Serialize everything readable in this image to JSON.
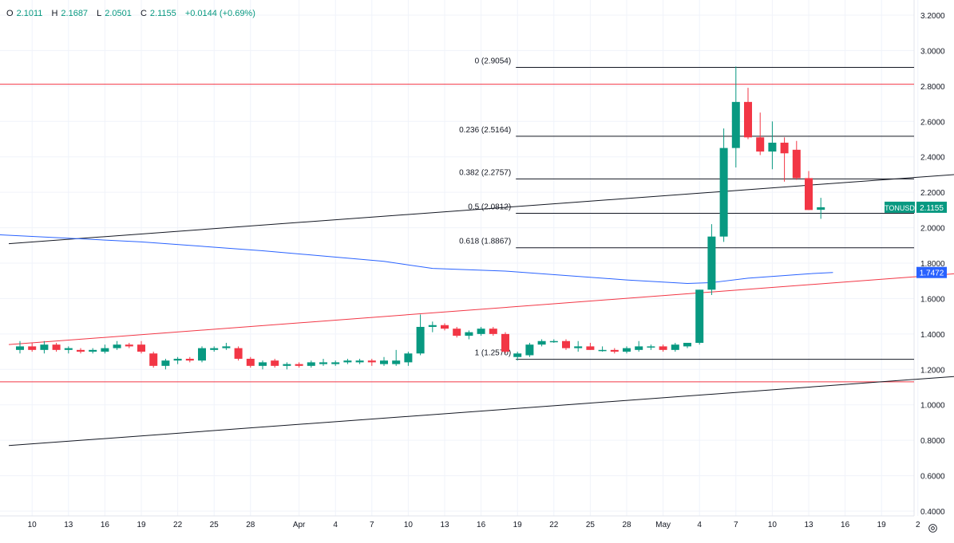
{
  "header": {
    "open_label": "O",
    "open_value": "2.1011",
    "high_label": "H",
    "high_value": "2.1687",
    "low_label": "L",
    "low_value": "2.0501",
    "close_label": "C",
    "close_value": "2.1155",
    "change": "+0.0144 (+0.69%)"
  },
  "colors": {
    "up": "#089981",
    "down": "#f23645",
    "grid": "#f0f3fa",
    "axis_text": "#131722",
    "ma_line": "#2962ff",
    "red_line": "#f23645",
    "black_line": "#131722"
  },
  "icons": {
    "axis_settings": "gear-icon"
  },
  "chart_data": {
    "type": "candlestick",
    "symbol": "TONUSD",
    "last_price_label": "2.1155",
    "ma_value_label": "1.7472",
    "y_ticks": [
      "3.2000",
      "3.0000",
      "2.8000",
      "2.6000",
      "2.4000",
      "2.2000",
      "2.0000",
      "1.8000",
      "1.6000",
      "1.4000",
      "1.2000",
      "1.0000",
      "0.8000",
      "0.6000",
      "0.4000"
    ],
    "x_ticks": [
      {
        "label": "10",
        "idx": 1
      },
      {
        "label": "13",
        "idx": 4
      },
      {
        "label": "16",
        "idx": 7
      },
      {
        "label": "19",
        "idx": 10
      },
      {
        "label": "22",
        "idx": 13
      },
      {
        "label": "25",
        "idx": 16
      },
      {
        "label": "28",
        "idx": 19
      },
      {
        "label": "Apr",
        "idx": 23
      },
      {
        "label": "4",
        "idx": 26
      },
      {
        "label": "7",
        "idx": 29
      },
      {
        "label": "10",
        "idx": 32
      },
      {
        "label": "13",
        "idx": 35
      },
      {
        "label": "16",
        "idx": 38
      },
      {
        "label": "19",
        "idx": 41
      },
      {
        "label": "22",
        "idx": 44
      },
      {
        "label": "25",
        "idx": 47
      },
      {
        "label": "28",
        "idx": 50
      },
      {
        "label": "May",
        "idx": 53
      },
      {
        "label": "4",
        "idx": 56
      },
      {
        "label": "7",
        "idx": 59
      },
      {
        "label": "10",
        "idx": 62
      },
      {
        "label": "13",
        "idx": 65
      },
      {
        "label": "16",
        "idx": 68
      },
      {
        "label": "19",
        "idx": 71
      },
      {
        "label": "2",
        "idx": 74
      }
    ],
    "candles": [
      {
        "o": 1.31,
        "h": 1.36,
        "l": 1.29,
        "c": 1.33
      },
      {
        "o": 1.33,
        "h": 1.35,
        "l": 1.3,
        "c": 1.31
      },
      {
        "o": 1.31,
        "h": 1.36,
        "l": 1.29,
        "c": 1.34
      },
      {
        "o": 1.34,
        "h": 1.35,
        "l": 1.3,
        "c": 1.31
      },
      {
        "o": 1.31,
        "h": 1.33,
        "l": 1.29,
        "c": 1.32
      },
      {
        "o": 1.31,
        "h": 1.32,
        "l": 1.29,
        "c": 1.3
      },
      {
        "o": 1.3,
        "h": 1.32,
        "l": 1.29,
        "c": 1.31
      },
      {
        "o": 1.3,
        "h": 1.34,
        "l": 1.29,
        "c": 1.32
      },
      {
        "o": 1.32,
        "h": 1.36,
        "l": 1.31,
        "c": 1.34
      },
      {
        "o": 1.34,
        "h": 1.35,
        "l": 1.32,
        "c": 1.33
      },
      {
        "o": 1.34,
        "h": 1.36,
        "l": 1.29,
        "c": 1.3
      },
      {
        "o": 1.29,
        "h": 1.3,
        "l": 1.21,
        "c": 1.22
      },
      {
        "o": 1.22,
        "h": 1.26,
        "l": 1.2,
        "c": 1.25
      },
      {
        "o": 1.25,
        "h": 1.27,
        "l": 1.23,
        "c": 1.26
      },
      {
        "o": 1.26,
        "h": 1.27,
        "l": 1.24,
        "c": 1.25
      },
      {
        "o": 1.25,
        "h": 1.33,
        "l": 1.24,
        "c": 1.32
      },
      {
        "o": 1.31,
        "h": 1.33,
        "l": 1.3,
        "c": 1.32
      },
      {
        "o": 1.32,
        "h": 1.35,
        "l": 1.31,
        "c": 1.33
      },
      {
        "o": 1.32,
        "h": 1.33,
        "l": 1.25,
        "c": 1.26
      },
      {
        "o": 1.26,
        "h": 1.27,
        "l": 1.21,
        "c": 1.22
      },
      {
        "o": 1.22,
        "h": 1.25,
        "l": 1.2,
        "c": 1.24
      },
      {
        "o": 1.25,
        "h": 1.26,
        "l": 1.21,
        "c": 1.22
      },
      {
        "o": 1.22,
        "h": 1.24,
        "l": 1.2,
        "c": 1.23
      },
      {
        "o": 1.23,
        "h": 1.24,
        "l": 1.21,
        "c": 1.22
      },
      {
        "o": 1.22,
        "h": 1.25,
        "l": 1.21,
        "c": 1.24
      },
      {
        "o": 1.23,
        "h": 1.26,
        "l": 1.22,
        "c": 1.24
      },
      {
        "o": 1.23,
        "h": 1.25,
        "l": 1.22,
        "c": 1.24
      },
      {
        "o": 1.24,
        "h": 1.26,
        "l": 1.23,
        "c": 1.25
      },
      {
        "o": 1.24,
        "h": 1.26,
        "l": 1.23,
        "c": 1.25
      },
      {
        "o": 1.25,
        "h": 1.26,
        "l": 1.22,
        "c": 1.24
      },
      {
        "o": 1.23,
        "h": 1.27,
        "l": 1.22,
        "c": 1.25
      },
      {
        "o": 1.23,
        "h": 1.31,
        "l": 1.22,
        "c": 1.25
      },
      {
        "o": 1.24,
        "h": 1.3,
        "l": 1.22,
        "c": 1.29
      },
      {
        "o": 1.29,
        "h": 1.51,
        "l": 1.28,
        "c": 1.44
      },
      {
        "o": 1.44,
        "h": 1.47,
        "l": 1.41,
        "c": 1.45
      },
      {
        "o": 1.45,
        "h": 1.46,
        "l": 1.42,
        "c": 1.43
      },
      {
        "o": 1.43,
        "h": 1.44,
        "l": 1.38,
        "c": 1.39
      },
      {
        "o": 1.39,
        "h": 1.42,
        "l": 1.37,
        "c": 1.41
      },
      {
        "o": 1.4,
        "h": 1.44,
        "l": 1.39,
        "c": 1.43
      },
      {
        "o": 1.43,
        "h": 1.44,
        "l": 1.39,
        "c": 1.4
      },
      {
        "o": 1.4,
        "h": 1.41,
        "l": 1.29,
        "c": 1.3
      },
      {
        "o": 1.27,
        "h": 1.3,
        "l": 1.25,
        "c": 1.29
      },
      {
        "o": 1.28,
        "h": 1.35,
        "l": 1.27,
        "c": 1.34
      },
      {
        "o": 1.34,
        "h": 1.37,
        "l": 1.33,
        "c": 1.36
      },
      {
        "o": 1.36,
        "h": 1.37,
        "l": 1.35,
        "c": 1.36
      },
      {
        "o": 1.36,
        "h": 1.37,
        "l": 1.31,
        "c": 1.32
      },
      {
        "o": 1.32,
        "h": 1.36,
        "l": 1.3,
        "c": 1.33
      },
      {
        "o": 1.33,
        "h": 1.35,
        "l": 1.31,
        "c": 1.31
      },
      {
        "o": 1.31,
        "h": 1.33,
        "l": 1.3,
        "c": 1.31
      },
      {
        "o": 1.31,
        "h": 1.32,
        "l": 1.29,
        "c": 1.3
      },
      {
        "o": 1.3,
        "h": 1.33,
        "l": 1.29,
        "c": 1.32
      },
      {
        "o": 1.31,
        "h": 1.36,
        "l": 1.3,
        "c": 1.33
      },
      {
        "o": 1.33,
        "h": 1.34,
        "l": 1.31,
        "c": 1.33
      },
      {
        "o": 1.33,
        "h": 1.34,
        "l": 1.3,
        "c": 1.31
      },
      {
        "o": 1.31,
        "h": 1.35,
        "l": 1.3,
        "c": 1.34
      },
      {
        "o": 1.33,
        "h": 1.35,
        "l": 1.32,
        "c": 1.35
      },
      {
        "o": 1.35,
        "h": 1.65,
        "l": 1.34,
        "c": 1.65
      },
      {
        "o": 1.65,
        "h": 2.02,
        "l": 1.62,
        "c": 1.95
      },
      {
        "o": 1.95,
        "h": 2.56,
        "l": 1.92,
        "c": 2.45
      },
      {
        "o": 2.45,
        "h": 2.91,
        "l": 2.34,
        "c": 2.71
      },
      {
        "o": 2.71,
        "h": 2.79,
        "l": 2.5,
        "c": 2.51
      },
      {
        "o": 2.51,
        "h": 2.65,
        "l": 2.41,
        "c": 2.43
      },
      {
        "o": 2.43,
        "h": 2.6,
        "l": 2.33,
        "c": 2.48
      },
      {
        "o": 2.48,
        "h": 2.51,
        "l": 2.26,
        "c": 2.42
      },
      {
        "o": 2.44,
        "h": 2.49,
        "l": 2.27,
        "c": 2.28
      },
      {
        "o": 2.28,
        "h": 2.32,
        "l": 2.1,
        "c": 2.1
      },
      {
        "o": 2.1011,
        "h": 2.1687,
        "l": 2.0501,
        "c": 2.1155
      }
    ],
    "ma_line": {
      "name": "",
      "points": [
        [
          0,
          1.96
        ],
        [
          10,
          1.92
        ],
        [
          20,
          1.87
        ],
        [
          30,
          1.81
        ],
        [
          34,
          1.77
        ],
        [
          40,
          1.755
        ],
        [
          50,
          1.705
        ],
        [
          55,
          1.685
        ],
        [
          57,
          1.69
        ],
        [
          60,
          1.715
        ],
        [
          65,
          1.74
        ],
        [
          67,
          1.7472
        ]
      ]
    },
    "trendlines": [
      {
        "color": "red",
        "start": [
          0,
          1.34
        ],
        "end": [
          79,
          1.75
        ]
      },
      {
        "color": "black",
        "start": [
          0,
          1.91
        ],
        "end": [
          79,
          2.31
        ]
      },
      {
        "color": "black",
        "start": [
          0,
          0.77
        ],
        "end": [
          79,
          1.17
        ]
      }
    ],
    "horizontal_lines": [
      {
        "color": "red",
        "value": 2.81
      },
      {
        "color": "red",
        "value": 1.13
      }
    ],
    "fib_levels": [
      {
        "label": "0 (2.9054)",
        "value": 2.9054
      },
      {
        "label": "0.236 (2.5164)",
        "value": 2.5164
      },
      {
        "label": "0.382 (2.2757)",
        "value": 2.2757
      },
      {
        "label": "0.5 (2.0812)",
        "value": 2.0812
      },
      {
        "label": "0.618 (1.8867)",
        "value": 1.8867
      },
      {
        "label": "1 (1.2570)",
        "value": 1.257
      }
    ],
    "fib_start_idx": 41,
    "ylim": [
      0.4,
      3.2
    ],
    "grid": true
  }
}
